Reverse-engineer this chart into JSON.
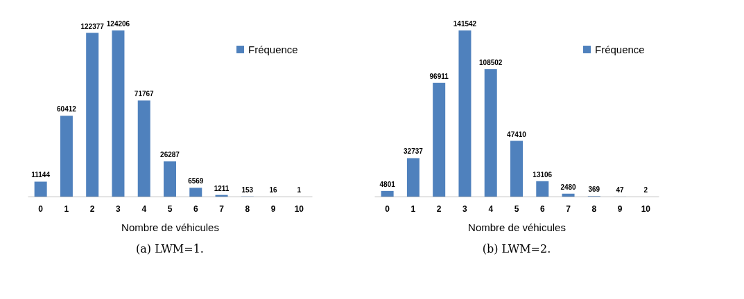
{
  "chart_data": [
    {
      "type": "bar",
      "xlabel": "Nombre de véhicules",
      "categories": [
        "0",
        "1",
        "2",
        "3",
        "4",
        "5",
        "6",
        "7",
        "8",
        "9",
        "10"
      ],
      "series": [
        {
          "name": "Fréquence",
          "color": "#4f81bd",
          "values": [
            11144,
            60412,
            122377,
            124206,
            71767,
            26287,
            6569,
            1211,
            153,
            16,
            1
          ]
        }
      ],
      "data_labels": true,
      "legend": "top right",
      "grid": false,
      "annotations": [
        "(a) LWM=1."
      ]
    },
    {
      "type": "bar",
      "xlabel": "Nombre de véhicules",
      "categories": [
        "0",
        "1",
        "2",
        "3",
        "4",
        "5",
        "6",
        "7",
        "8",
        "9",
        "10"
      ],
      "series": [
        {
          "name": "Fréquence",
          "color": "#4f81bd",
          "values": [
            4801,
            32737,
            96911,
            141542,
            108502,
            47410,
            13106,
            2480,
            369,
            47,
            2
          ]
        }
      ],
      "data_labels": true,
      "legend": "top right",
      "grid": false,
      "annotations": [
        "(b) LWM=2."
      ]
    }
  ]
}
